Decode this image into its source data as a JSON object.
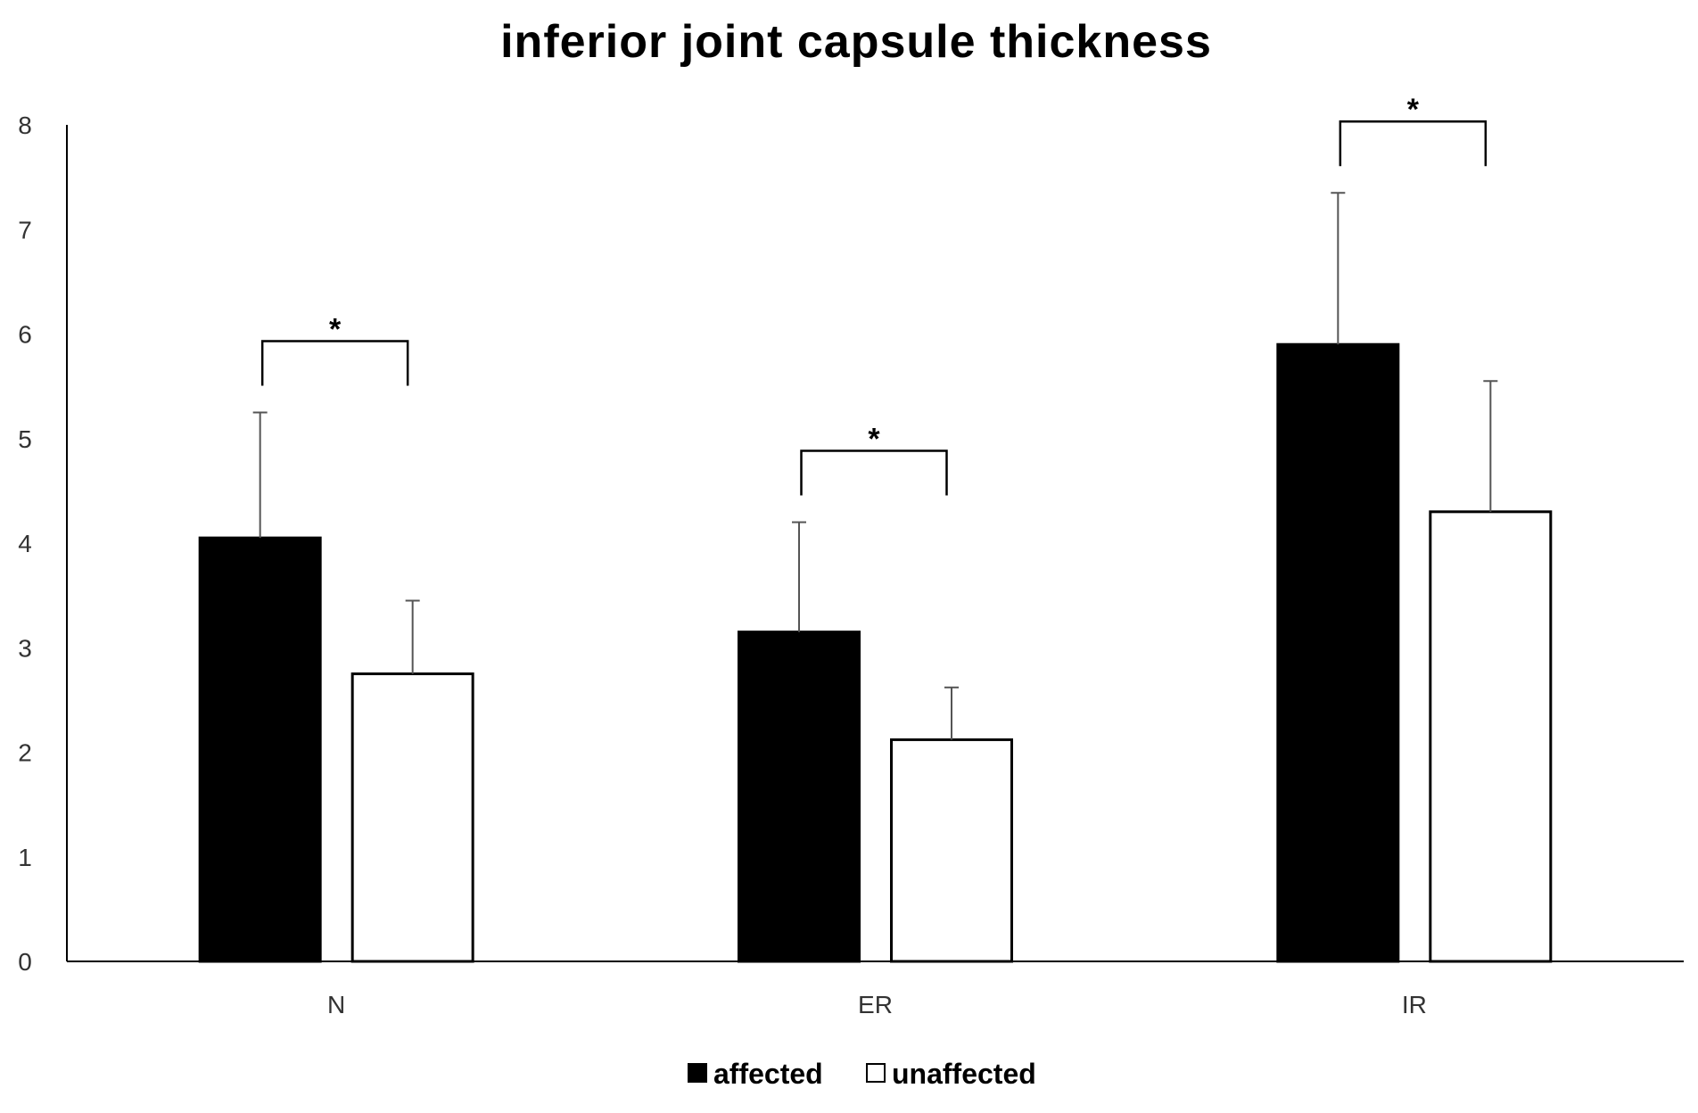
{
  "chart_data": {
    "type": "bar",
    "title": "inferior joint capsule thickness",
    "xlabel": "",
    "ylabel": "",
    "ylim": [
      0,
      8
    ],
    "yticks": [
      0,
      1,
      2,
      3,
      4,
      5,
      6,
      7,
      8
    ],
    "grid": false,
    "categories": [
      "N",
      "ER",
      "IR"
    ],
    "series": [
      {
        "name": "affected",
        "color": "#000000",
        "values": [
          4.05,
          3.15,
          5.9
        ],
        "errors": [
          1.2,
          1.05,
          1.45
        ]
      },
      {
        "name": "unaffected",
        "color": "#ffffff",
        "values": [
          2.75,
          2.12,
          4.3
        ],
        "errors": [
          0.7,
          0.5,
          1.25
        ]
      }
    ],
    "significance": [
      {
        "category": "N",
        "label": "*"
      },
      {
        "category": "ER",
        "label": "*"
      },
      {
        "category": "IR",
        "label": "*"
      }
    ],
    "legend_position": "bottom-center"
  }
}
